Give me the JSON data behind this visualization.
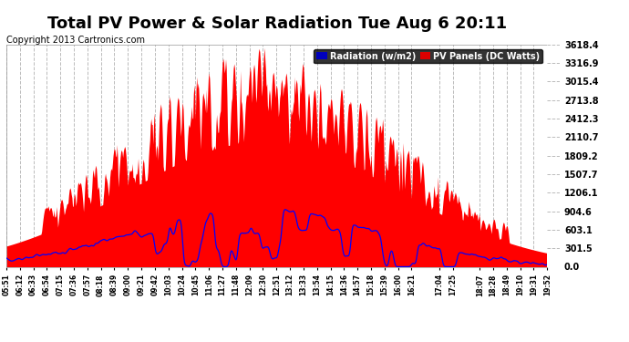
{
  "title": "Total PV Power & Solar Radiation Tue Aug 6 20:11",
  "copyright": "Copyright 2013 Cartronics.com",
  "legend_radiation": "Radiation (w/m2)",
  "legend_pv": "PV Panels (DC Watts)",
  "legend_radiation_bg": "#0000bb",
  "legend_pv_bg": "#dd0000",
  "ymax": 3618.4,
  "yticks": [
    0.0,
    301.5,
    603.1,
    904.6,
    1206.1,
    1507.7,
    1809.2,
    2110.7,
    2412.3,
    2713.8,
    3015.4,
    3316.9,
    3618.4
  ],
  "bg_color": "#ffffff",
  "plot_bg_color": "#ffffff",
  "grid_color": "#bbbbbb",
  "pv_color": "#ff0000",
  "radiation_color": "#0000ff",
  "title_fontsize": 13,
  "copyright_fontsize": 7
}
